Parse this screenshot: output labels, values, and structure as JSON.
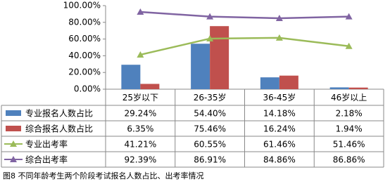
{
  "chart_data": {
    "type": "combo",
    "categories": [
      "25岁以下",
      "26-35岁",
      "36-45岁",
      "46岁以上"
    ],
    "ylim": [
      0,
      100
    ],
    "yticks": [
      {
        "value": 0,
        "label": "0.00%"
      },
      {
        "value": 20,
        "label": "20.00%"
      },
      {
        "value": 40,
        "label": "40.00%"
      },
      {
        "value": 60,
        "label": "60.00%"
      },
      {
        "value": 80,
        "label": "80.00%"
      },
      {
        "value": 100,
        "label": "100.00%"
      }
    ],
    "grid": false,
    "series": [
      {
        "name": "专业报名人数占比",
        "type": "bar",
        "color": "#4f81bd",
        "values": [
          29.24,
          54.4,
          14.18,
          2.18
        ],
        "value_labels": [
          "29.24%",
          "54.40%",
          "14.18%",
          "2.18%"
        ]
      },
      {
        "name": "综合报名人数占比",
        "type": "bar",
        "color": "#c0504d",
        "values": [
          6.35,
          75.46,
          16.24,
          1.94
        ],
        "value_labels": [
          "6.35%",
          "75.46%",
          "16.24%",
          "1.94%"
        ]
      },
      {
        "name": "专业出考率",
        "type": "line",
        "color": "#9bbb59",
        "values": [
          41.21,
          60.55,
          61.46,
          51.46
        ],
        "value_labels": [
          "41.21%",
          "60.55%",
          "61.46%",
          "51.46%"
        ]
      },
      {
        "name": "综合出考率",
        "type": "line",
        "color": "#8064a2",
        "values": [
          92.39,
          86.91,
          84.86,
          86.86
        ],
        "value_labels": [
          "92.39%",
          "86.91%",
          "84.86%",
          "86.86%"
        ]
      }
    ],
    "caption": "图8  不同年龄考生两个阶段考试报名人数占比、出考率情况"
  }
}
